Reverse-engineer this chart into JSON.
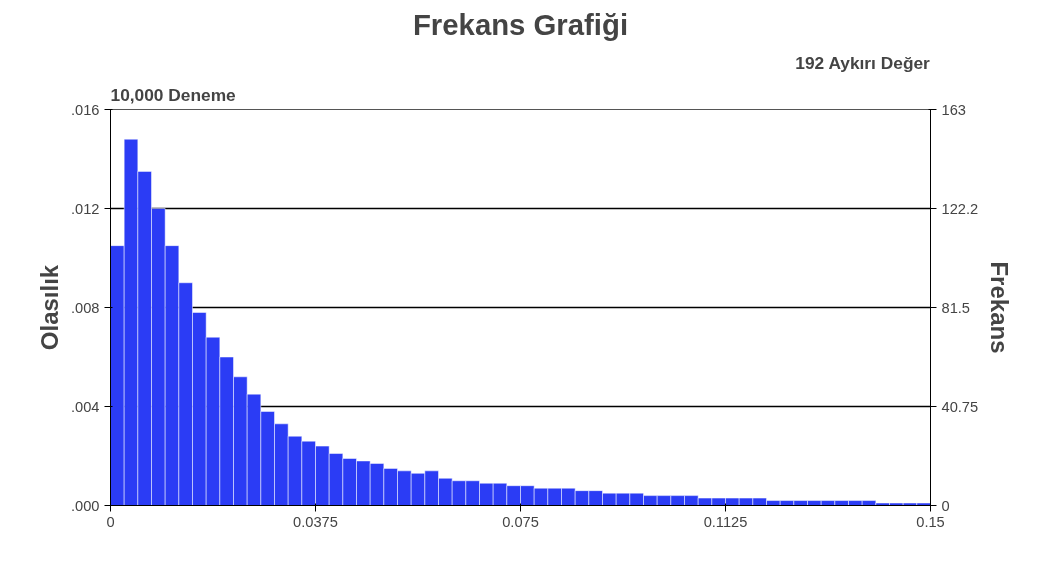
{
  "chart_data": {
    "type": "histogram",
    "title": "Frekans Grafiği",
    "ylabel": "Olasılık",
    "y2label": "Frekans",
    "annotations": [
      "10,000  Deneme",
      "192 Aykırı Değer"
    ],
    "color": "#2b3cf5",
    "bins": [
      0,
      0.0025,
      0.005,
      0.0075,
      0.01,
      0.0125,
      0.015,
      0.0175,
      0.02,
      0.0225,
      0.025,
      0.0275,
      0.03,
      0.0325,
      0.035,
      0.0375,
      0.04,
      0.0425,
      0.045,
      0.0475,
      0.05,
      0.0525,
      0.055,
      0.0575,
      0.06,
      0.0625,
      0.065,
      0.0675,
      0.07,
      0.0725,
      0.075,
      0.0775,
      0.08,
      0.0825,
      0.085,
      0.0875,
      0.09,
      0.0925,
      0.095,
      0.0975,
      0.1,
      0.1025,
      0.105,
      0.1075,
      0.11,
      0.1125,
      0.115,
      0.1175,
      0.12,
      0.1225,
      0.125,
      0.1275,
      0.13,
      0.1325,
      0.135,
      0.1375,
      0.14,
      0.1425,
      0.145,
      0.1475,
      0.15
    ],
    "values": [
      0.0105,
      0.0148,
      0.0135,
      0.012,
      0.0105,
      0.009,
      0.0078,
      0.0068,
      0.006,
      0.0052,
      0.0045,
      0.0038,
      0.0033,
      0.0028,
      0.0026,
      0.0024,
      0.0021,
      0.0019,
      0.0018,
      0.0017,
      0.0015,
      0.0014,
      0.0013,
      0.0014,
      0.0011,
      0.001,
      0.001,
      0.0009,
      0.0009,
      0.0008,
      0.0008,
      0.0007,
      0.0007,
      0.0007,
      0.0006,
      0.0006,
      0.0005,
      0.0005,
      0.0005,
      0.0004,
      0.0004,
      0.0004,
      0.0004,
      0.0003,
      0.0003,
      0.0003,
      0.0003,
      0.0003,
      0.0002,
      0.0002,
      0.0002,
      0.0002,
      0.0002,
      0.0002,
      0.0002,
      0.0002,
      0.0001,
      0.0001,
      0.0001,
      0.0001
    ],
    "xlim": [
      0,
      0.15
    ],
    "xticks": [
      0,
      0.0375,
      0.075,
      0.1125,
      0.15
    ],
    "ylim": [
      0,
      0.016
    ],
    "yticks": [
      {
        "value": 0,
        "label": ".000"
      },
      {
        "value": 0.004,
        "label": ".004"
      },
      {
        "value": 0.008,
        "label": ".008"
      },
      {
        "value": 0.012,
        "label": ".012"
      },
      {
        "value": 0.016,
        "label": ".016"
      }
    ],
    "y2lim": [
      0,
      163
    ],
    "y2ticks": [
      0,
      40.75,
      81.5,
      122.2,
      163
    ],
    "grid": "y"
  }
}
